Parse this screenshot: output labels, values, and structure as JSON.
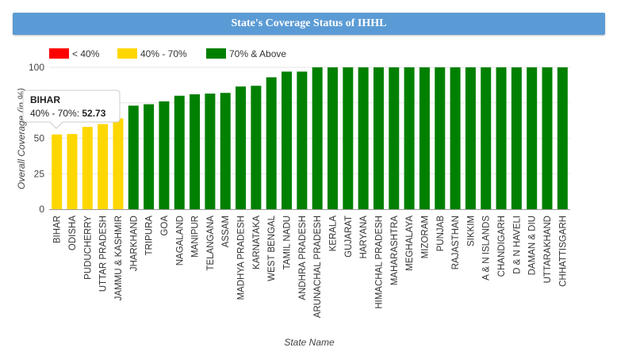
{
  "header": {
    "title": "State's Coverage Status of IHHL"
  },
  "legend": [
    {
      "label": "< 40%",
      "color": "#ff0000"
    },
    {
      "label": "40% - 70%",
      "color": "#ffd700"
    },
    {
      "label": "70% & Above",
      "color": "#008000"
    }
  ],
  "tooltip": {
    "state": "BIHAR",
    "band": "40% - 70%:",
    "value": "52.73"
  },
  "chart_data": {
    "type": "bar",
    "title": "State's Coverage Status of IHHL",
    "xlabel": "State Name",
    "ylabel": "Overall Coverage (in %)",
    "ylim": [
      0,
      100
    ],
    "yticks": [
      0,
      25,
      50,
      75,
      100
    ],
    "grid": true,
    "legend_position": "top-left",
    "categories": [
      "BIHAR",
      "ODISHA",
      "PUDUCHERRY",
      "UTTAR PRADESH",
      "JAMMU & KASHMIR",
      "JHARKHAND",
      "TRIPURA",
      "GOA",
      "NAGALAND",
      "MANIPUR",
      "TELANGANA",
      "ASSAM",
      "MADHYA PRADESH",
      "KARNATAKA",
      "WEST BENGAL",
      "TAMIL NADU",
      "ANDHRA PRADESH",
      "ARUNACHAL PRADESH",
      "KERALA",
      "GUJARAT",
      "HARYANA",
      "HIMACHAL PRADESH",
      "MAHARASHTRA",
      "MEGHALAYA",
      "MIZORAM",
      "PUNJAB",
      "RAJASTHAN",
      "SIKKIM",
      "A & N ISLANDS",
      "CHANDIGARH",
      "D & N HAVELI",
      "DAMAN & DIU",
      "UTTARAKHAND",
      "CHHATTISGARH"
    ],
    "values": [
      52.73,
      53,
      58,
      60,
      64,
      73,
      74,
      76,
      80,
      81,
      81.5,
      82,
      86.5,
      87,
      93,
      97,
      97,
      100,
      100,
      100,
      100,
      100,
      100,
      100,
      100,
      100,
      100,
      100,
      100,
      100,
      100,
      100,
      100,
      100
    ],
    "colors": [
      "#ffd700",
      "#ffd700",
      "#ffd700",
      "#ffd700",
      "#ffd700",
      "#008000",
      "#008000",
      "#008000",
      "#008000",
      "#008000",
      "#008000",
      "#008000",
      "#008000",
      "#008000",
      "#008000",
      "#008000",
      "#008000",
      "#008000",
      "#008000",
      "#008000",
      "#008000",
      "#008000",
      "#008000",
      "#008000",
      "#008000",
      "#008000",
      "#008000",
      "#008000",
      "#008000",
      "#008000",
      "#008000",
      "#008000",
      "#008000",
      "#008000"
    ]
  }
}
